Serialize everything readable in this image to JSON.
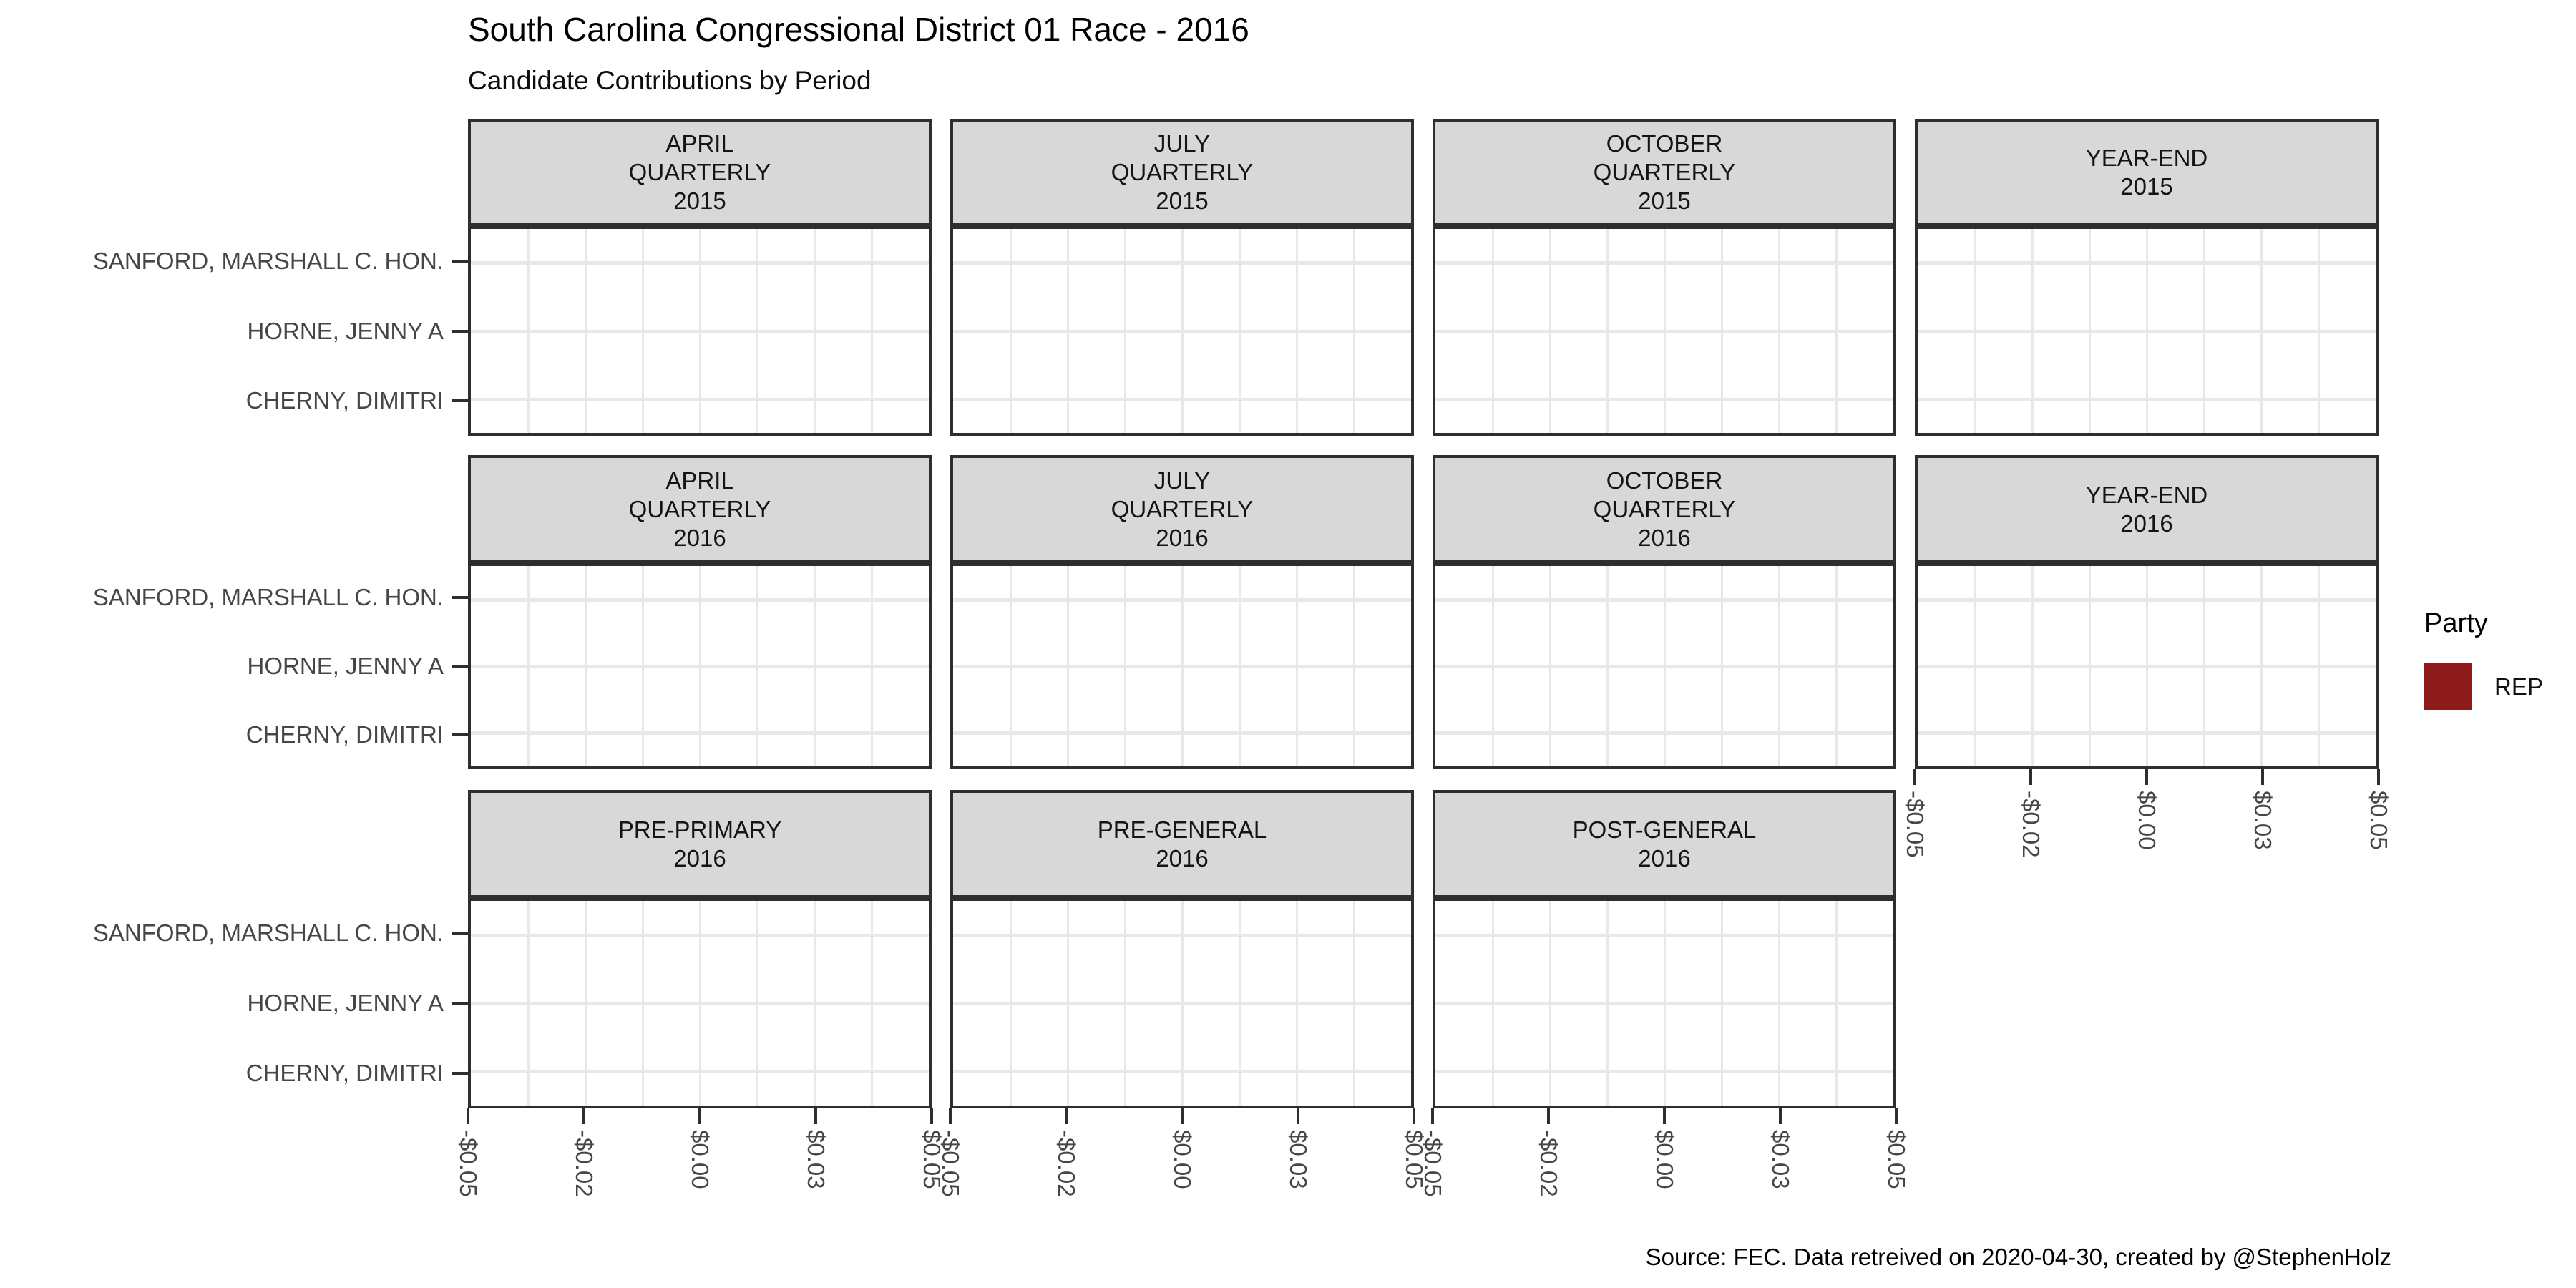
{
  "title": "South Carolina Congressional District 01 Race - 2016",
  "subtitle": "Candidate Contributions by Period",
  "caption": "Source: FEC. Data retreived on 2020-04-30, created by @StephenHolz",
  "legend": {
    "title": "Party",
    "items": [
      {
        "label": "REP",
        "color": "#8E1B1B"
      }
    ]
  },
  "y_axis": {
    "candidates": [
      "SANFORD, MARSHALL C. HON.",
      "HORNE, JENNY A",
      "CHERNY, DIMITRI"
    ]
  },
  "x_axis": {
    "tick_labels": [
      "-$0.05",
      "-$0.02",
      "$0.00",
      "$0.03",
      "$0.05"
    ]
  },
  "facet_panels": [
    {
      "lines": [
        "APRIL",
        "QUARTERLY",
        "2015"
      ],
      "row": 0,
      "col": 0,
      "x_axis": false
    },
    {
      "lines": [
        "JULY",
        "QUARTERLY",
        "2015"
      ],
      "row": 0,
      "col": 1,
      "x_axis": false
    },
    {
      "lines": [
        "OCTOBER",
        "QUARTERLY",
        "2015"
      ],
      "row": 0,
      "col": 2,
      "x_axis": false
    },
    {
      "lines": [
        "YEAR-END",
        "2015"
      ],
      "row": 0,
      "col": 3,
      "x_axis": false
    },
    {
      "lines": [
        "APRIL",
        "QUARTERLY",
        "2016"
      ],
      "row": 1,
      "col": 0,
      "x_axis": false
    },
    {
      "lines": [
        "JULY",
        "QUARTERLY",
        "2016"
      ],
      "row": 1,
      "col": 1,
      "x_axis": false
    },
    {
      "lines": [
        "OCTOBER",
        "QUARTERLY",
        "2016"
      ],
      "row": 1,
      "col": 2,
      "x_axis": false
    },
    {
      "lines": [
        "YEAR-END",
        "2016"
      ],
      "row": 1,
      "col": 3,
      "x_axis": true
    },
    {
      "lines": [
        "PRE-PRIMARY",
        "2016"
      ],
      "row": 2,
      "col": 0,
      "x_axis": true
    },
    {
      "lines": [
        "PRE-GENERAL",
        "2016"
      ],
      "row": 2,
      "col": 1,
      "x_axis": true
    },
    {
      "lines": [
        "POST-GENERAL",
        "2016"
      ],
      "row": 2,
      "col": 2,
      "x_axis": true
    }
  ],
  "colors": {
    "strip_fill": "#D8D8D8",
    "panel_border": "#2E2E2E",
    "gridline": "#E8E8E8",
    "axis_text": "#464646",
    "rep_red": "#8E1B1B"
  },
  "chart_data": {
    "type": "bar",
    "orientation": "horizontal",
    "title": "South Carolina Congressional District 01 Race - 2016",
    "subtitle": "Candidate Contributions by Period",
    "caption": "Source: FEC. Data retreived on 2020-04-30, created by @StephenHolz",
    "categories": [
      "SANFORD, MARSHALL C. HON.",
      "HORNE, JENNY A",
      "CHERNY, DIMITRI"
    ],
    "facets": [
      "APRIL QUARTERLY 2015",
      "JULY QUARTERLY 2015",
      "OCTOBER QUARTERLY 2015",
      "YEAR-END 2015",
      "APRIL QUARTERLY 2016",
      "JULY QUARTERLY 2016",
      "OCTOBER QUARTERLY 2016",
      "YEAR-END 2016",
      "PRE-PRIMARY 2016",
      "PRE-GENERAL 2016",
      "POST-GENERAL 2016"
    ],
    "series": [
      {
        "name": "APRIL QUARTERLY 2015",
        "values": [
          0,
          0,
          0
        ]
      },
      {
        "name": "JULY QUARTERLY 2015",
        "values": [
          0,
          0,
          0
        ]
      },
      {
        "name": "OCTOBER QUARTERLY 2015",
        "values": [
          0,
          0,
          0
        ]
      },
      {
        "name": "YEAR-END 2015",
        "values": [
          0,
          0,
          0
        ]
      },
      {
        "name": "APRIL QUARTERLY 2016",
        "values": [
          0,
          0,
          0
        ]
      },
      {
        "name": "JULY QUARTERLY 2016",
        "values": [
          0,
          0,
          0
        ]
      },
      {
        "name": "OCTOBER QUARTERLY 2016",
        "values": [
          0,
          0,
          0
        ]
      },
      {
        "name": "YEAR-END 2016",
        "values": [
          0,
          0,
          0
        ]
      },
      {
        "name": "PRE-PRIMARY 2016",
        "values": [
          0,
          0,
          0
        ]
      },
      {
        "name": "PRE-GENERAL 2016",
        "values": [
          0,
          0,
          0
        ]
      },
      {
        "name": "POST-GENERAL 2016",
        "values": [
          0,
          0,
          0
        ]
      }
    ],
    "xlabel": "",
    "ylabel": "",
    "xlim": [
      -0.05,
      0.05
    ],
    "x_tick_labels": [
      "-$0.05",
      "-$0.02",
      "$0.00",
      "$0.03",
      "$0.05"
    ],
    "grid": true,
    "legend": {
      "title": "Party",
      "entries": [
        "REP"
      ],
      "position": "right",
      "rep_color": "#8E1B1B"
    }
  }
}
